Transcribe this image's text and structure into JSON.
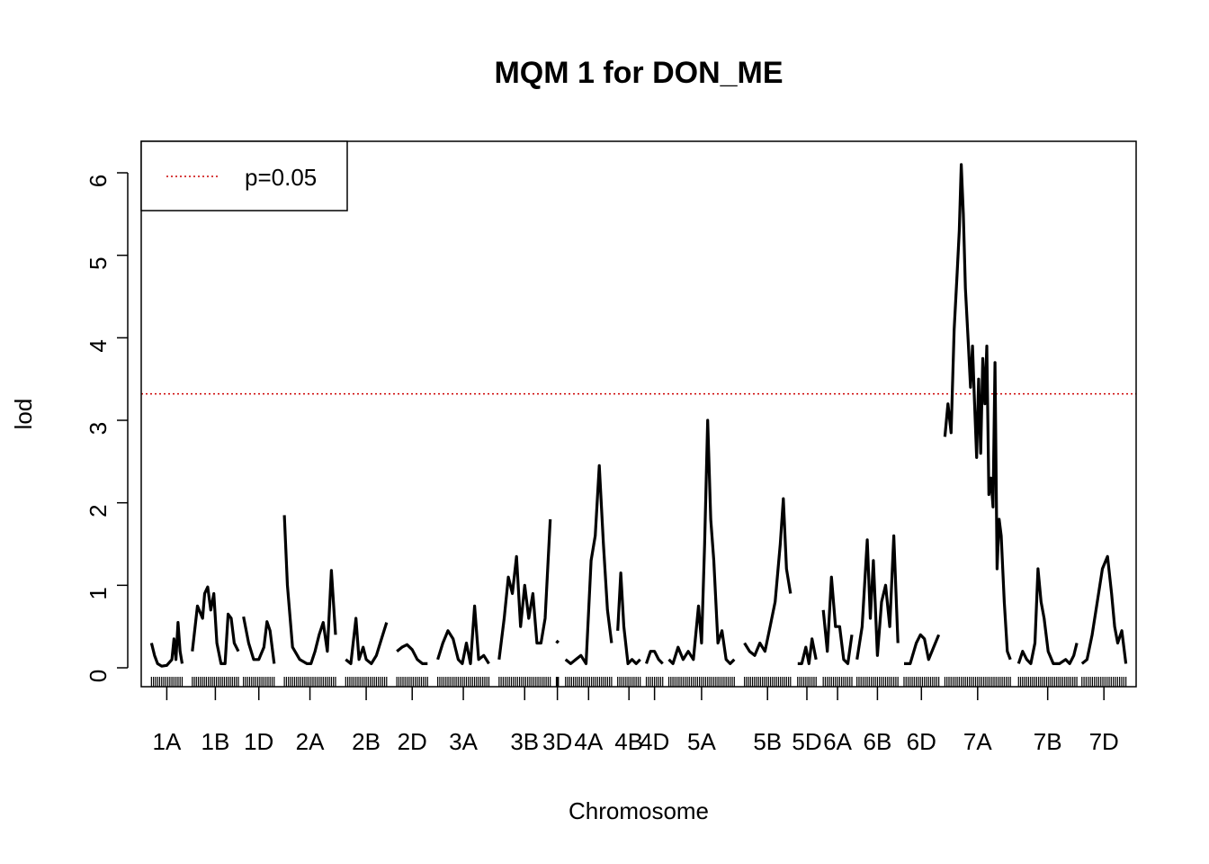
{
  "chart_data": {
    "type": "line",
    "title": "MQM 1 for DON_ME",
    "xlabel": "Chromosome",
    "ylabel": "lod",
    "ylim": [
      0,
      6
    ],
    "yticks": [
      "0",
      "1",
      "2",
      "3",
      "4",
      "5",
      "6"
    ],
    "grid": false,
    "legend": {
      "placement": "top-left",
      "entries": [
        {
          "label": "p=0.05",
          "style": "dotted",
          "color": "#cc0000"
        }
      ]
    },
    "threshold": {
      "label": "p=0.05",
      "value": 3.32,
      "color": "#cc0000"
    },
    "line_color": "#000000",
    "chromosomes": [
      {
        "name": "1A",
        "start": 0.0,
        "end": 3.0,
        "points": [
          [
            0,
            0.3
          ],
          [
            0.3,
            0.15
          ],
          [
            0.6,
            0.05
          ],
          [
            1.0,
            0.02
          ],
          [
            1.5,
            0.03
          ],
          [
            2.0,
            0.1
          ],
          [
            2.2,
            0.35
          ],
          [
            2.4,
            0.1
          ],
          [
            2.6,
            0.55
          ],
          [
            2.8,
            0.2
          ],
          [
            3.0,
            0.05
          ]
        ]
      },
      {
        "name": "1B",
        "start": 4.0,
        "end": 8.5,
        "points": [
          [
            4.0,
            0.2
          ],
          [
            4.5,
            0.75
          ],
          [
            5.0,
            0.6
          ],
          [
            5.2,
            0.9
          ],
          [
            5.5,
            0.98
          ],
          [
            5.8,
            0.7
          ],
          [
            6.1,
            0.9
          ],
          [
            6.4,
            0.3
          ],
          [
            6.8,
            0.05
          ],
          [
            7.2,
            0.05
          ],
          [
            7.5,
            0.65
          ],
          [
            7.8,
            0.6
          ],
          [
            8.1,
            0.3
          ],
          [
            8.5,
            0.2
          ]
        ]
      },
      {
        "name": "1D",
        "start": 9.0,
        "end": 12.0,
        "points": [
          [
            9.0,
            0.62
          ],
          [
            9.5,
            0.3
          ],
          [
            10.0,
            0.1
          ],
          [
            10.5,
            0.1
          ],
          [
            11.0,
            0.25
          ],
          [
            11.3,
            0.56
          ],
          [
            11.6,
            0.45
          ],
          [
            12.0,
            0.05
          ]
        ]
      },
      {
        "name": "2A",
        "start": 13.0,
        "end": 18.0,
        "points": [
          [
            13.0,
            1.85
          ],
          [
            13.3,
            1.0
          ],
          [
            13.8,
            0.25
          ],
          [
            14.5,
            0.1
          ],
          [
            15.2,
            0.05
          ],
          [
            15.6,
            0.05
          ],
          [
            16.0,
            0.2
          ],
          [
            16.4,
            0.4
          ],
          [
            16.8,
            0.55
          ],
          [
            17.2,
            0.2
          ],
          [
            17.6,
            1.18
          ],
          [
            18.0,
            0.4
          ]
        ]
      },
      {
        "name": "2B",
        "start": 19.0,
        "end": 23.0,
        "points": [
          [
            19.0,
            0.1
          ],
          [
            19.5,
            0.05
          ],
          [
            20.0,
            0.6
          ],
          [
            20.3,
            0.1
          ],
          [
            20.7,
            0.25
          ],
          [
            21.0,
            0.1
          ],
          [
            21.5,
            0.05
          ],
          [
            22.0,
            0.15
          ],
          [
            22.5,
            0.35
          ],
          [
            23.0,
            0.55
          ]
        ]
      },
      {
        "name": "2D",
        "start": 24.0,
        "end": 27.0,
        "points": [
          [
            24.0,
            0.2
          ],
          [
            24.5,
            0.25
          ],
          [
            25.0,
            0.28
          ],
          [
            25.5,
            0.22
          ],
          [
            26.0,
            0.1
          ],
          [
            26.5,
            0.05
          ],
          [
            27.0,
            0.05
          ]
        ]
      },
      {
        "name": "3A",
        "start": 28.0,
        "end": 33.0,
        "points": [
          [
            28.0,
            0.1
          ],
          [
            28.5,
            0.3
          ],
          [
            29.0,
            0.45
          ],
          [
            29.5,
            0.35
          ],
          [
            30.0,
            0.1
          ],
          [
            30.4,
            0.05
          ],
          [
            30.8,
            0.3
          ],
          [
            31.2,
            0.05
          ],
          [
            31.6,
            0.75
          ],
          [
            32.0,
            0.1
          ],
          [
            32.5,
            0.15
          ],
          [
            33.0,
            0.05
          ]
        ]
      },
      {
        "name": "3B",
        "start": 34.0,
        "end": 39.0,
        "points": [
          [
            34.0,
            0.1
          ],
          [
            34.5,
            0.6
          ],
          [
            34.9,
            1.1
          ],
          [
            35.3,
            0.9
          ],
          [
            35.7,
            1.35
          ],
          [
            36.1,
            0.5
          ],
          [
            36.5,
            1.0
          ],
          [
            36.9,
            0.6
          ],
          [
            37.3,
            0.9
          ],
          [
            37.7,
            0.3
          ],
          [
            38.1,
            0.3
          ],
          [
            38.5,
            0.6
          ],
          [
            39.0,
            1.8
          ]
        ]
      },
      {
        "name": "3D",
        "start": 39.6,
        "end": 39.8,
        "points": [
          [
            39.6,
            0.3
          ],
          [
            39.8,
            0.33
          ]
        ]
      },
      {
        "name": "4A",
        "start": 40.5,
        "end": 45.0,
        "points": [
          [
            40.5,
            0.1
          ],
          [
            41.0,
            0.05
          ],
          [
            41.5,
            0.1
          ],
          [
            42.0,
            0.15
          ],
          [
            42.5,
            0.05
          ],
          [
            43.0,
            1.3
          ],
          [
            43.4,
            1.6
          ],
          [
            43.8,
            2.45
          ],
          [
            44.2,
            1.5
          ],
          [
            44.6,
            0.7
          ],
          [
            45.0,
            0.3
          ]
        ]
      },
      {
        "name": "4B",
        "start": 45.6,
        "end": 47.8,
        "points": [
          [
            45.6,
            0.45
          ],
          [
            45.9,
            1.15
          ],
          [
            46.2,
            0.5
          ],
          [
            46.6,
            0.05
          ],
          [
            47.0,
            0.1
          ],
          [
            47.4,
            0.05
          ],
          [
            47.8,
            0.1
          ]
        ]
      },
      {
        "name": "4D",
        "start": 48.4,
        "end": 50.0,
        "points": [
          [
            48.4,
            0.05
          ],
          [
            48.8,
            0.2
          ],
          [
            49.2,
            0.2
          ],
          [
            49.6,
            0.1
          ],
          [
            50.0,
            0.05
          ]
        ]
      },
      {
        "name": "5A",
        "start": 50.6,
        "end": 57.0,
        "points": [
          [
            50.6,
            0.1
          ],
          [
            51.0,
            0.05
          ],
          [
            51.5,
            0.25
          ],
          [
            52.0,
            0.1
          ],
          [
            52.5,
            0.2
          ],
          [
            53.0,
            0.1
          ],
          [
            53.5,
            0.75
          ],
          [
            53.8,
            0.3
          ],
          [
            54.1,
            1.5
          ],
          [
            54.4,
            3.0
          ],
          [
            54.7,
            1.8
          ],
          [
            55.0,
            1.3
          ],
          [
            55.4,
            0.3
          ],
          [
            55.8,
            0.45
          ],
          [
            56.2,
            0.1
          ],
          [
            56.6,
            0.05
          ],
          [
            57.0,
            0.1
          ]
        ]
      },
      {
        "name": "5B",
        "start": 58.0,
        "end": 62.5,
        "points": [
          [
            58.0,
            0.3
          ],
          [
            58.5,
            0.2
          ],
          [
            59.0,
            0.15
          ],
          [
            59.5,
            0.3
          ],
          [
            60.0,
            0.2
          ],
          [
            60.5,
            0.5
          ],
          [
            61.0,
            0.8
          ],
          [
            61.5,
            1.5
          ],
          [
            61.8,
            2.05
          ],
          [
            62.1,
            1.2
          ],
          [
            62.5,
            0.9
          ]
        ]
      },
      {
        "name": "5D",
        "start": 63.2,
        "end": 65.0,
        "points": [
          [
            63.2,
            0.05
          ],
          [
            63.6,
            0.05
          ],
          [
            64.0,
            0.25
          ],
          [
            64.3,
            0.05
          ],
          [
            64.6,
            0.35
          ],
          [
            65.0,
            0.1
          ]
        ]
      },
      {
        "name": "6A",
        "start": 65.7,
        "end": 68.5,
        "points": [
          [
            65.7,
            0.7
          ],
          [
            66.1,
            0.2
          ],
          [
            66.5,
            1.1
          ],
          [
            66.9,
            0.5
          ],
          [
            67.3,
            0.5
          ],
          [
            67.7,
            0.1
          ],
          [
            68.1,
            0.05
          ],
          [
            68.5,
            0.4
          ]
        ]
      },
      {
        "name": "6B",
        "start": 69.0,
        "end": 73.0,
        "points": [
          [
            69.0,
            0.1
          ],
          [
            69.5,
            0.5
          ],
          [
            70.0,
            1.55
          ],
          [
            70.3,
            0.6
          ],
          [
            70.6,
            1.3
          ],
          [
            71.0,
            0.15
          ],
          [
            71.4,
            0.8
          ],
          [
            71.8,
            1.0
          ],
          [
            72.2,
            0.5
          ],
          [
            72.6,
            1.6
          ],
          [
            73.0,
            0.3
          ]
        ]
      },
      {
        "name": "6D",
        "start": 73.6,
        "end": 77.0,
        "points": [
          [
            73.6,
            0.05
          ],
          [
            74.2,
            0.05
          ],
          [
            74.8,
            0.3
          ],
          [
            75.2,
            0.4
          ],
          [
            75.6,
            0.35
          ],
          [
            76.0,
            0.1
          ],
          [
            76.5,
            0.25
          ],
          [
            77.0,
            0.4
          ]
        ]
      },
      {
        "name": "7A",
        "start": 77.6,
        "end": 84.0,
        "points": [
          [
            77.6,
            2.8
          ],
          [
            77.9,
            3.2
          ],
          [
            78.2,
            2.85
          ],
          [
            78.5,
            4.1
          ],
          [
            78.8,
            4.8
          ],
          [
            79.0,
            5.3
          ],
          [
            79.2,
            6.1
          ],
          [
            79.4,
            5.5
          ],
          [
            79.6,
            4.6
          ],
          [
            79.9,
            3.9
          ],
          [
            80.1,
            3.4
          ],
          [
            80.3,
            3.9
          ],
          [
            80.5,
            3.2
          ],
          [
            80.7,
            2.55
          ],
          [
            80.9,
            3.5
          ],
          [
            81.1,
            2.6
          ],
          [
            81.3,
            3.75
          ],
          [
            81.5,
            3.2
          ],
          [
            81.7,
            3.9
          ],
          [
            81.9,
            2.1
          ],
          [
            82.1,
            2.3
          ],
          [
            82.3,
            1.95
          ],
          [
            82.5,
            3.7
          ],
          [
            82.7,
            1.2
          ],
          [
            82.9,
            1.8
          ],
          [
            83.1,
            1.6
          ],
          [
            83.4,
            0.8
          ],
          [
            83.7,
            0.2
          ],
          [
            84.0,
            0.1
          ]
        ]
      },
      {
        "name": "7B",
        "start": 84.8,
        "end": 90.5,
        "points": [
          [
            84.8,
            0.05
          ],
          [
            85.2,
            0.2
          ],
          [
            85.6,
            0.1
          ],
          [
            86.0,
            0.05
          ],
          [
            86.4,
            0.3
          ],
          [
            86.7,
            1.2
          ],
          [
            87.0,
            0.8
          ],
          [
            87.3,
            0.6
          ],
          [
            87.7,
            0.2
          ],
          [
            88.2,
            0.05
          ],
          [
            88.8,
            0.05
          ],
          [
            89.4,
            0.1
          ],
          [
            89.8,
            0.05
          ],
          [
            90.2,
            0.15
          ],
          [
            90.5,
            0.3
          ]
        ]
      },
      {
        "name": "7D",
        "start": 91.0,
        "end": 95.3,
        "points": [
          [
            91.0,
            0.05
          ],
          [
            91.5,
            0.1
          ],
          [
            92.0,
            0.4
          ],
          [
            92.5,
            0.8
          ],
          [
            93.0,
            1.2
          ],
          [
            93.5,
            1.35
          ],
          [
            93.9,
            0.9
          ],
          [
            94.2,
            0.5
          ],
          [
            94.5,
            0.3
          ],
          [
            94.9,
            0.45
          ],
          [
            95.3,
            0.05
          ]
        ]
      }
    ],
    "x_tick_labels": [
      "1A",
      "1B",
      "1D",
      "2A",
      "2B",
      "2D",
      "3A",
      "3B",
      "3D",
      "4A",
      "4B",
      "4D",
      "5A",
      "5B",
      "5D",
      "6A",
      "6B",
      "6D",
      "7A",
      "7B",
      "7D"
    ]
  }
}
